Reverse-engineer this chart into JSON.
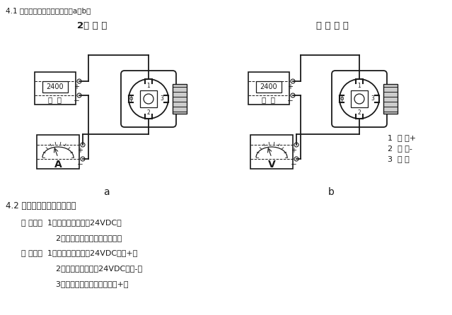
{
  "title_top": "4.1 赫斯曼结构电气连接如下图a、b：",
  "title_left": "2线 电 流",
  "title_right": "电 压 输 出",
  "label_a": "a",
  "label_b": "b",
  "section42_title": "4.2 直接引线结构电气连接：",
  "line1": "口 电流：  1号端子（红线）：24VDC；",
  "line2": "              2号端子（蓝线）：电流输出。",
  "line3": "口 电压：  1号端子（红线）：24VDC电源+；",
  "line4": "              2号端子（蓝线）：24VDC电源-；",
  "line5": "              3号端子（黄线）：信号输出+。",
  "legend1": "1  电 源+",
  "legend2": "2  电 源-",
  "legend3": "3  输 出",
  "bg_color": "#f5f5f5",
  "line_color": "#1a1a1a",
  "text_color": "#1a1a1a"
}
